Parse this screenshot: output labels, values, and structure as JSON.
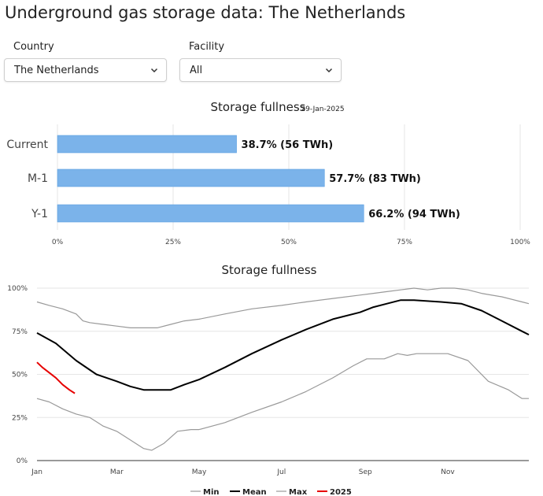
{
  "page": {
    "title": "Underground gas storage data: The Netherlands"
  },
  "filters": {
    "country": {
      "label": "Country",
      "value": "The Netherlands"
    },
    "facility": {
      "label": "Facility",
      "value": "All"
    }
  },
  "icons": {
    "dropdown": "chevron-down-icon"
  },
  "colors": {
    "bar": "#7bb3ea",
    "min": "#999999",
    "mean": "#000000",
    "max": "#999999",
    "y2025": "#e60000",
    "grid": "#e6e6e6"
  },
  "chart_data": [
    {
      "type": "bar",
      "orientation": "horizontal",
      "title": "Storage fullness",
      "subtitle": "29-Jan-2025",
      "categories": [
        "Current",
        "M-1",
        "Y-1"
      ],
      "values": [
        38.7,
        57.7,
        66.2
      ],
      "data_labels": [
        "38.7% (56 TWh)",
        "57.7% (83 TWh)",
        "66.2% (94 TWh)"
      ],
      "xlim": [
        0,
        100
      ],
      "x_ticks": [
        "0%",
        "25%",
        "50%",
        "75%",
        "100%"
      ],
      "grid": true
    },
    {
      "type": "line",
      "title": "Storage fullness",
      "ylim": [
        0,
        100
      ],
      "y_ticks": [
        "0%",
        "25%",
        "50%",
        "75%",
        "100%"
      ],
      "x_ticks": [
        "Jan",
        "Mar",
        "May",
        "Jul",
        "Sep",
        "Nov"
      ],
      "x_tick_days": [
        1,
        60,
        121,
        182,
        244,
        305
      ],
      "x_range_days": [
        1,
        365
      ],
      "legend_position": "bottom-center",
      "grid": true,
      "series": [
        {
          "name": "Min",
          "color": "#999999",
          "x": [
            1,
            10,
            20,
            30,
            40,
            50,
            60,
            70,
            80,
            86,
            95,
            105,
            115,
            121,
            140,
            160,
            182,
            200,
            220,
            235,
            245,
            258,
            268,
            275,
            282,
            295,
            305,
            320,
            335,
            350,
            360,
            365
          ],
          "y": [
            36,
            34,
            30,
            27,
            25,
            20,
            17,
            12,
            7,
            6,
            10,
            17,
            18,
            18,
            22,
            28,
            34,
            40,
            48,
            55,
            59,
            59,
            62,
            61,
            62,
            62,
            62,
            58,
            46,
            41,
            36,
            36
          ]
        },
        {
          "name": "Mean",
          "color": "#000000",
          "x": [
            1,
            15,
            30,
            45,
            60,
            70,
            80,
            90,
            100,
            110,
            121,
            140,
            160,
            182,
            200,
            220,
            240,
            250,
            260,
            270,
            280,
            300,
            315,
            330,
            345,
            360,
            365
          ],
          "y": [
            74,
            68,
            58,
            50,
            46,
            43,
            41,
            41,
            41,
            44,
            47,
            54,
            62,
            70,
            76,
            82,
            86,
            89,
            91,
            93,
            93,
            92,
            91,
            87,
            81,
            75,
            73
          ]
        },
        {
          "name": "Max",
          "color": "#999999",
          "x": [
            1,
            10,
            20,
            30,
            35,
            40,
            50,
            60,
            70,
            80,
            90,
            100,
            110,
            121,
            140,
            160,
            182,
            200,
            220,
            240,
            250,
            260,
            270,
            280,
            290,
            300,
            310,
            320,
            330,
            345,
            360,
            365
          ],
          "y": [
            92,
            90,
            88,
            85,
            81,
            80,
            79,
            78,
            77,
            77,
            77,
            79,
            81,
            82,
            85,
            88,
            90,
            92,
            94,
            96,
            97,
            98,
            99,
            100,
            99,
            100,
            100,
            99,
            97,
            95,
            92,
            91
          ]
        },
        {
          "name": "2025",
          "color": "#e60000",
          "x": [
            1,
            5,
            10,
            15,
            20,
            25,
            29
          ],
          "y": [
            57,
            54,
            51,
            48,
            44,
            41,
            39
          ]
        }
      ]
    }
  ]
}
